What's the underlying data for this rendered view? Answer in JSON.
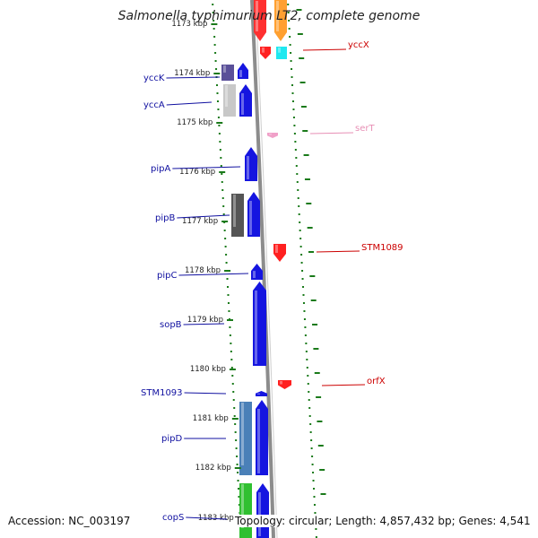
{
  "title": "Salmonella typhimurium LT2, complete genome",
  "accession": "Accession: NC_003197",
  "topology": "Topology: circular; Length: 4,857,432 bp; Genes: 4,541",
  "colors": {
    "tick": "#1a7a1a",
    "backbone": "#8c8c8c",
    "left_label": "#1010a0",
    "right_label": "#cc0000",
    "pink_label": "#e78fb5"
  },
  "ticks": [
    {
      "label": "1173 kbp"
    },
    {
      "label": "1174 kbp"
    },
    {
      "label": "1175 kbp"
    },
    {
      "label": "1176 kbp"
    },
    {
      "label": "1177 kbp"
    },
    {
      "label": "1178 kbp"
    },
    {
      "label": "1179 kbp"
    },
    {
      "label": "1180 kbp"
    },
    {
      "label": "1181 kbp"
    },
    {
      "label": "1182 kbp"
    },
    {
      "label": "1183 kbp"
    }
  ],
  "genes_left": [
    {
      "name": "yccK"
    },
    {
      "name": "yccA"
    },
    {
      "name": "pipA"
    },
    {
      "name": "pipB"
    },
    {
      "name": "pipC"
    },
    {
      "name": "sopB"
    },
    {
      "name": "STM1093"
    },
    {
      "name": "pipD"
    },
    {
      "name": "copS"
    }
  ],
  "genes_right": [
    {
      "name": "yccX"
    },
    {
      "name": "serT"
    },
    {
      "name": "STM1089"
    },
    {
      "name": "orfX"
    }
  ]
}
